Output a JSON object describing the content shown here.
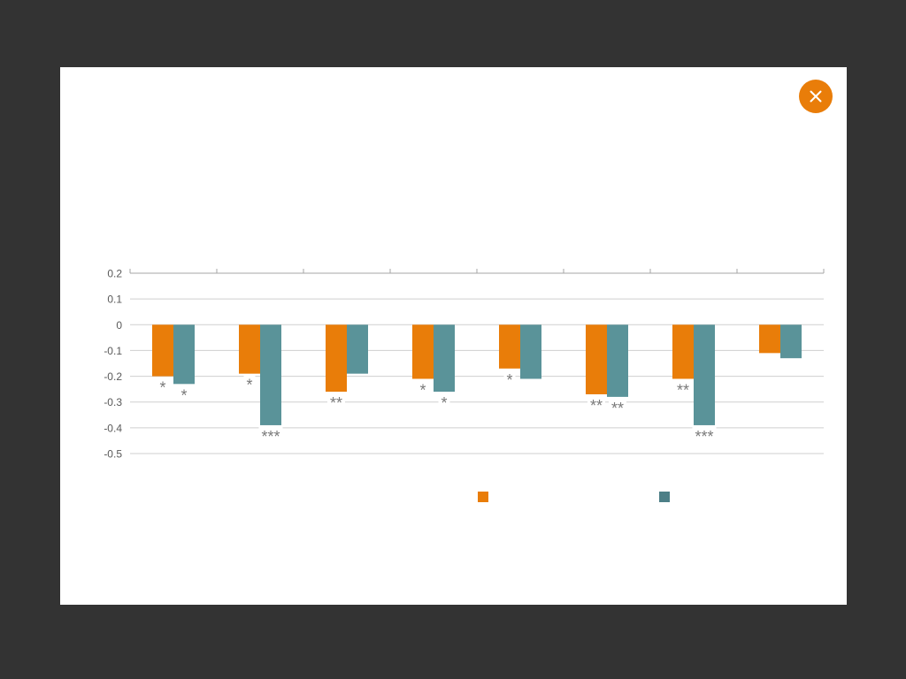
{
  "colors": {
    "backdrop": "#333333",
    "panel": "#ffffff",
    "accent": "#e97d09",
    "series1": "#e97d09",
    "series2": "#5a9399",
    "legend_series2": "#4d7f87",
    "grid": "#cfcfcf",
    "axis": "#a6a6a6",
    "tick_text": "#595959",
    "marker_text": "#7a7a7a"
  },
  "modal": {
    "close_icon": "close-icon"
  },
  "chart_data": {
    "type": "bar",
    "title": "",
    "xlabel": "",
    "ylabel": "",
    "ylim": [
      -0.5,
      0.2
    ],
    "yticks": [
      0.2,
      0.1,
      0,
      -0.1,
      -0.2,
      -0.3,
      -0.4,
      -0.5
    ],
    "ytick_labels": [
      "0.2",
      "0.1",
      "0",
      "-0.1",
      "-0.2",
      "-0.3",
      "-0.4",
      "-0.5"
    ],
    "grid": true,
    "legend_position": "bottom",
    "category_count": 8,
    "series": [
      {
        "values": [
          -0.2,
          -0.19,
          -0.26,
          -0.21,
          -0.17,
          -0.27,
          -0.21,
          -0.11
        ],
        "markers": [
          "*",
          "*",
          "**",
          "*",
          "*",
          "**",
          "**",
          ""
        ]
      },
      {
        "values": [
          -0.23,
          -0.39,
          -0.19,
          -0.26,
          -0.21,
          -0.28,
          -0.39,
          -0.13
        ],
        "markers": [
          "*",
          "***",
          "",
          "*",
          "",
          "**",
          "***",
          ""
        ]
      }
    ]
  }
}
